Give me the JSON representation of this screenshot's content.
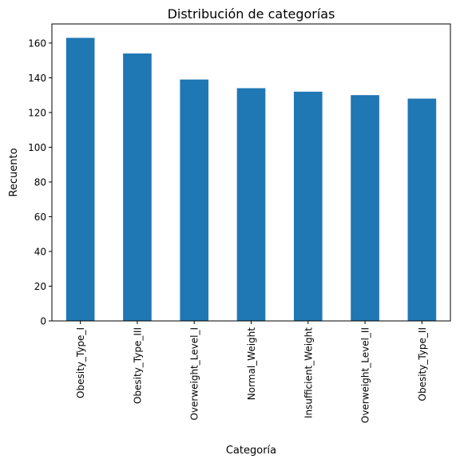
{
  "chart_data": {
    "type": "bar",
    "title": "Distribución de categorías",
    "xlabel": "Categoría",
    "ylabel": "Recuento",
    "categories": [
      "Obesity_Type_I",
      "Obesity_Type_III",
      "Overweight_Level_I",
      "Normal_Weight",
      "Insufficient_Weight",
      "Overweight_Level_II",
      "Obesity_Type_II"
    ],
    "values": [
      163,
      154,
      139,
      134,
      132,
      130,
      128
    ],
    "ylim": [
      0,
      171
    ],
    "yticks": [
      0,
      20,
      40,
      60,
      80,
      100,
      120,
      140,
      160
    ],
    "bar_color": "#1f77b4",
    "grid": false,
    "legend": "none"
  }
}
